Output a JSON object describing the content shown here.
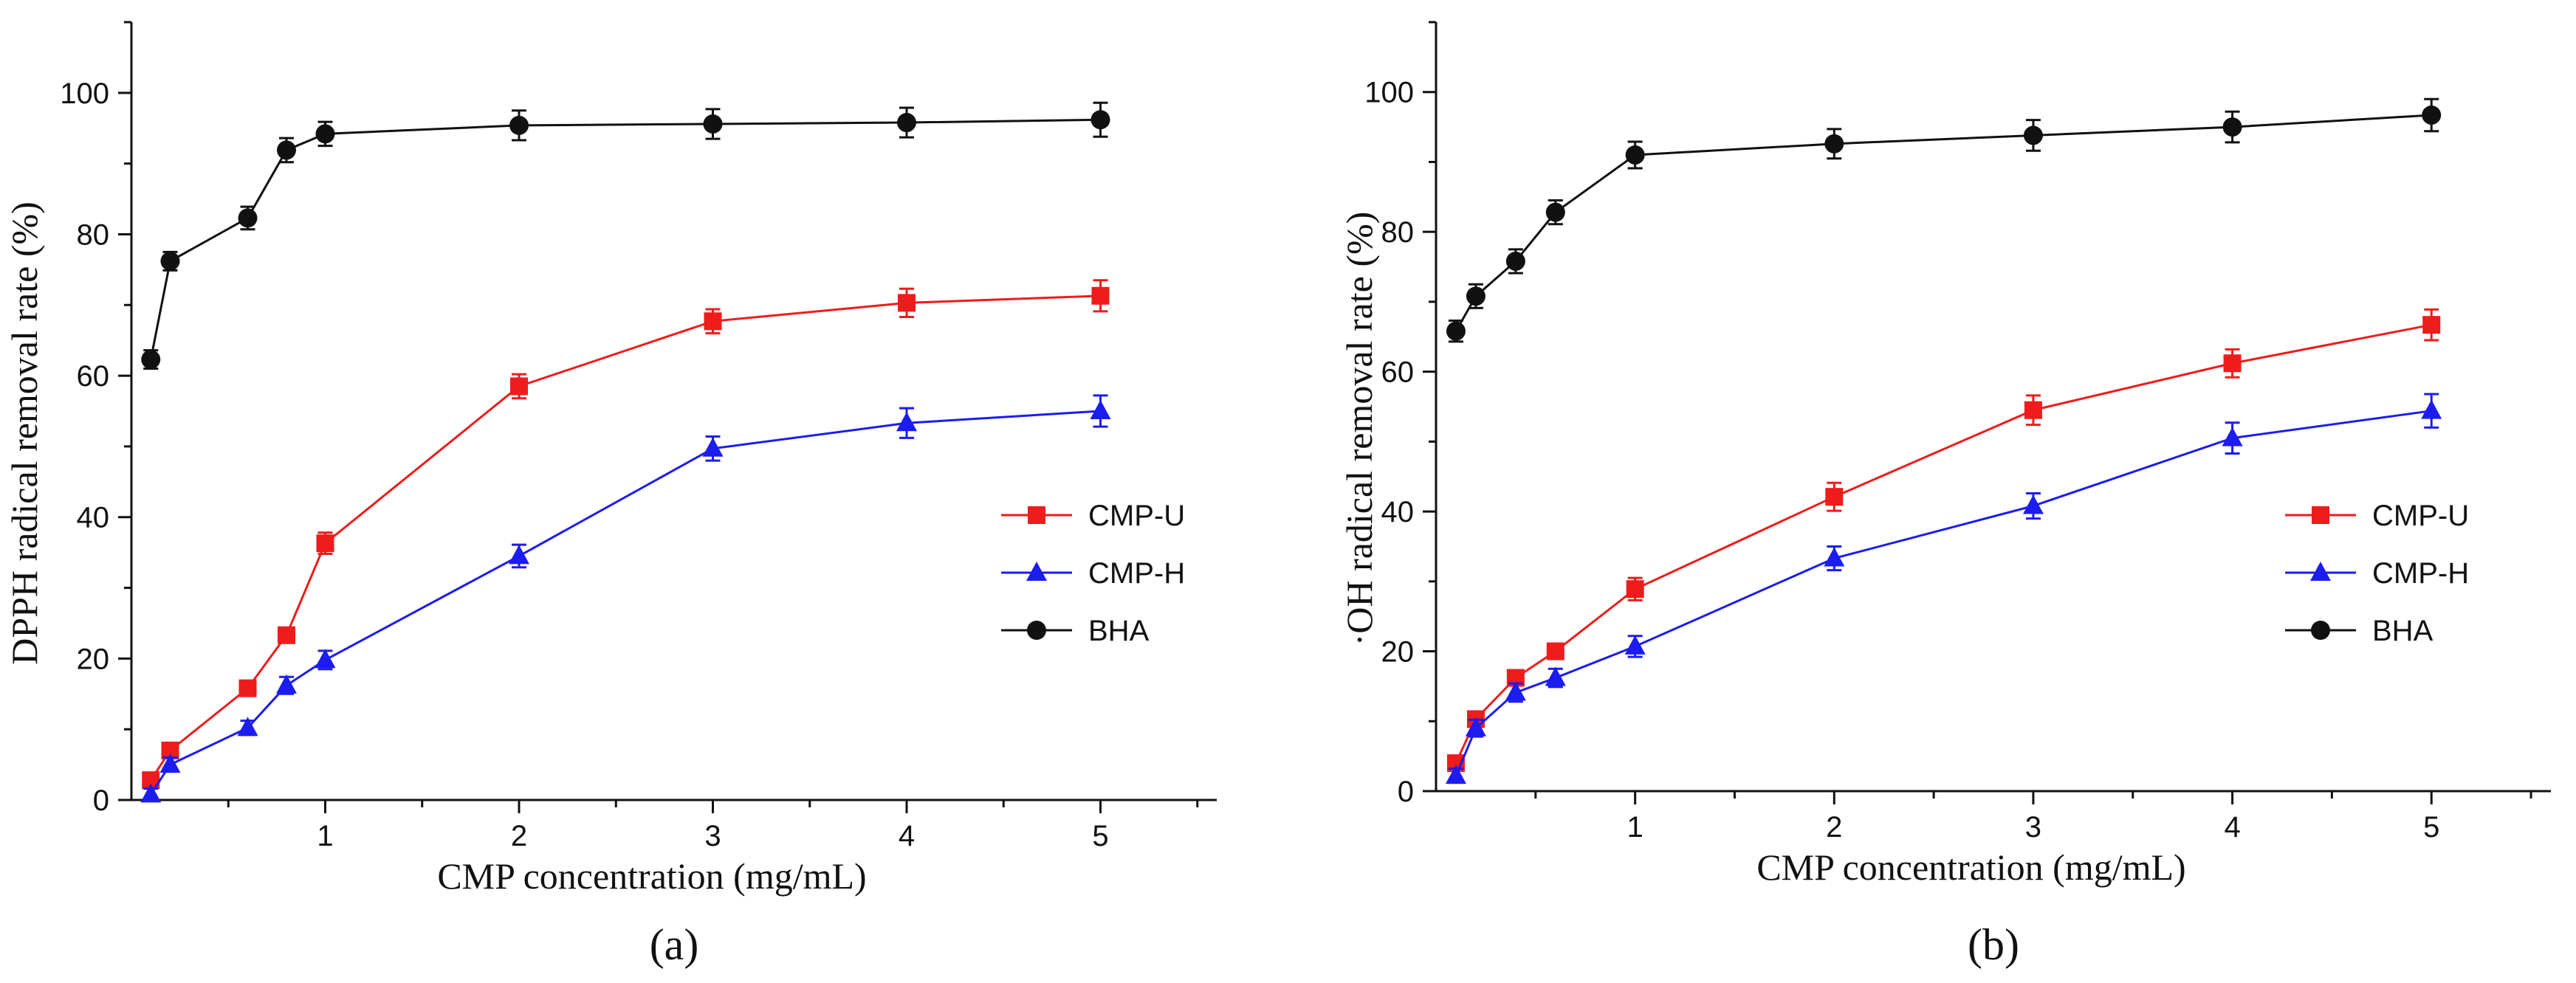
{
  "chart_data": [
    {
      "type": "line",
      "panel_label": "(a)",
      "xlabel": "CMP concentration (mg/mL)",
      "ylabel": "DPPH radical removal rate (%)",
      "xlim": [
        0,
        5.6
      ],
      "ylim": [
        0,
        110
      ],
      "xticks": [
        1,
        2,
        3,
        4,
        5
      ],
      "yticks": [
        0,
        20,
        40,
        60,
        80,
        100
      ],
      "legend_position": "bottom-right",
      "series": [
        {
          "name": "CMP-U",
          "color": "#ee1c1c",
          "marker": "square",
          "x": [
            0.1,
            0.2,
            0.6,
            0.8,
            1,
            2,
            3,
            4,
            5
          ],
          "y": [
            2.8,
            7.0,
            15.8,
            23.3,
            36.3,
            58.5,
            67.7,
            70.3,
            71.3
          ],
          "err": [
            0.6,
            0.7,
            0.8,
            0.9,
            1.5,
            1.7,
            1.7,
            2.0,
            2.2
          ]
        },
        {
          "name": "CMP-H",
          "color": "#1c1cee",
          "marker": "triangle",
          "x": [
            0.1,
            0.2,
            0.6,
            0.8,
            1,
            2,
            3,
            4,
            5
          ],
          "y": [
            0.8,
            5.0,
            10.2,
            16.2,
            19.8,
            34.5,
            49.7,
            53.3,
            55.0
          ],
          "err": [
            0.8,
            1.0,
            1.0,
            1.2,
            1.3,
            1.6,
            1.7,
            2.1,
            2.2
          ]
        },
        {
          "name": "BHA",
          "color": "#111111",
          "marker": "circle",
          "x": [
            0.1,
            0.2,
            0.6,
            0.8,
            1,
            2,
            3,
            4,
            5
          ],
          "y": [
            62.3,
            76.2,
            82.3,
            91.9,
            94.2,
            95.4,
            95.6,
            95.8,
            96.2
          ],
          "err": [
            1.3,
            1.3,
            1.6,
            1.7,
            1.7,
            2.1,
            2.1,
            2.1,
            2.4
          ]
        }
      ]
    },
    {
      "type": "line",
      "panel_label": "(b)",
      "xlabel": "CMP concentration (mg/mL)",
      "ylabel": "·OH radical removal rate (%)",
      "xlim": [
        0,
        5.6
      ],
      "ylim": [
        0,
        110
      ],
      "xticks": [
        1,
        2,
        3,
        4,
        5
      ],
      "yticks": [
        0,
        20,
        40,
        60,
        80,
        100
      ],
      "legend_position": "bottom-right",
      "series": [
        {
          "name": "CMP-U",
          "color": "#ee1c1c",
          "marker": "square",
          "x": [
            0.1,
            0.2,
            0.4,
            0.6,
            1,
            2,
            3,
            4,
            5
          ],
          "y": [
            4.0,
            10.3,
            16.2,
            20.0,
            28.9,
            42.1,
            54.5,
            61.2,
            66.7
          ],
          "err": [
            0.7,
            0.9,
            1.0,
            1.1,
            1.6,
            2.0,
            2.1,
            2.0,
            2.2
          ]
        },
        {
          "name": "CMP-H",
          "color": "#1c1cee",
          "marker": "triangle",
          "x": [
            0.1,
            0.2,
            0.4,
            0.6,
            1,
            2,
            3,
            4,
            5
          ],
          "y": [
            2.2,
            9.0,
            14.1,
            16.2,
            20.7,
            33.3,
            40.8,
            50.5,
            54.4
          ],
          "err": [
            1.0,
            1.2,
            1.3,
            1.3,
            1.5,
            1.7,
            1.8,
            2.2,
            2.4
          ]
        },
        {
          "name": "BHA",
          "color": "#111111",
          "marker": "circle",
          "x": [
            0.1,
            0.2,
            0.4,
            0.6,
            1,
            2,
            3,
            4,
            5
          ],
          "y": [
            65.8,
            70.8,
            75.8,
            82.8,
            91.0,
            92.6,
            93.8,
            95.0,
            96.7
          ],
          "err": [
            1.5,
            1.7,
            1.7,
            1.7,
            1.9,
            2.1,
            2.2,
            2.2,
            2.3
          ]
        }
      ]
    }
  ]
}
